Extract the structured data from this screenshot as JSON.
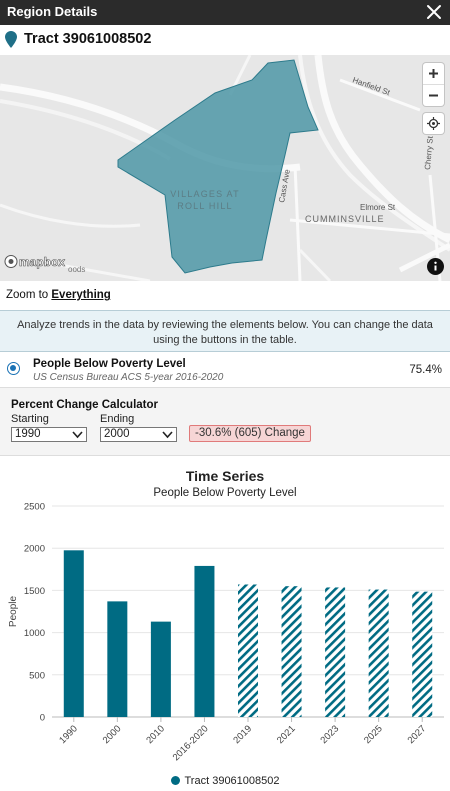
{
  "window": {
    "title": "Region Details"
  },
  "region": {
    "name": "Tract 39061008502"
  },
  "map": {
    "labels": {
      "neighborhood_1": "VILLAGES AT",
      "neighborhood_2": "ROLL HILL",
      "cumminsville": "CUMMINSVILLE",
      "hanfield": "Hanfield St",
      "cass": "Cass Ave",
      "elmore": "Elmore St",
      "cherry": "Cherry St",
      "mapbox": "mapbox",
      "partial": "oods"
    },
    "polygon_color": "#4d97a6"
  },
  "zoom": {
    "prefix": "Zoom to ",
    "link": "Everything"
  },
  "banner": {
    "text": "Analyze trends in the data by reviewing the elements below. You can change the data using the buttons in the table."
  },
  "metric": {
    "name": "People Below Poverty Level",
    "source": "US Census Bureau ACS 5-year 2016-2020",
    "value": "75.4%"
  },
  "calculator": {
    "title": "Percent Change Calculator",
    "starting_label": "Starting",
    "ending_label": "Ending",
    "starting_value": "1990",
    "ending_value": "2000",
    "change_text": "-30.6% (605) Change"
  },
  "chart_data": {
    "type": "bar",
    "title": "Time Series",
    "subtitle": "People Below Poverty Level",
    "ylabel": "People",
    "ylim": [
      0,
      2500
    ],
    "yticks": [
      0,
      500,
      1000,
      1500,
      2000,
      2500
    ],
    "categories": [
      "1990",
      "2000",
      "2010",
      "2016-2020",
      "2019",
      "2021",
      "2023",
      "2025",
      "2027"
    ],
    "series": [
      {
        "name": "Tract 39061008502",
        "values": [
          1975,
          1370,
          1130,
          1790,
          1570,
          1550,
          1535,
          1510,
          1485
        ],
        "projected": [
          false,
          false,
          false,
          false,
          true,
          true,
          true,
          true,
          true
        ]
      }
    ],
    "color": "#006b83",
    "legend": "bottom"
  }
}
